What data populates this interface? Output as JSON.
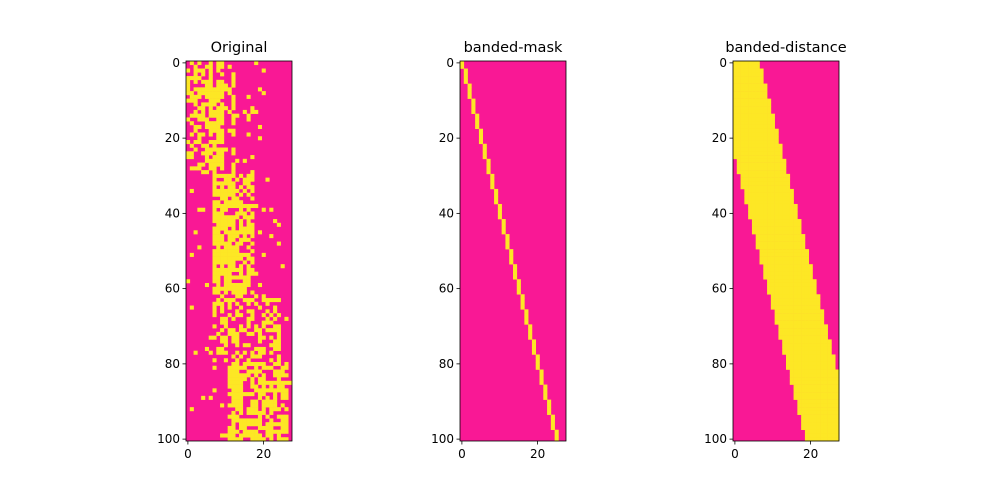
{
  "colors": {
    "background": "#f91895",
    "foreground": "#fde725",
    "axis": "#000000"
  },
  "chart_data": [
    {
      "type": "heatmap",
      "title": "Original",
      "xlim": [
        0,
        27
      ],
      "ylim": [
        0,
        100
      ],
      "x_ticks": [
        0,
        20
      ],
      "y_ticks": [
        0,
        20,
        40,
        60,
        80,
        100
      ],
      "colormap": "binary yellow on magenta",
      "description_ref": "random binary mask, values concentrated in central columns"
    },
    {
      "type": "heatmap",
      "title": "banded-mask",
      "xlim": [
        0,
        27
      ],
      "ylim": [
        0,
        100
      ],
      "x_ticks": [
        0,
        20
      ],
      "y_ticks": [
        0,
        20,
        40,
        60,
        80,
        100
      ],
      "band": {
        "start_col": 0,
        "end_col": 25,
        "width": 1
      }
    },
    {
      "type": "heatmap",
      "title": "banded-distance",
      "xlim": [
        0,
        27
      ],
      "ylim": [
        0,
        100
      ],
      "x_ticks": [
        0,
        20
      ],
      "y_ticks": [
        0,
        20,
        40,
        60,
        80,
        100
      ],
      "band": {
        "start_col": 0,
        "end_col": 25,
        "left_half_width": 6,
        "right_half_width": 6
      }
    }
  ]
}
